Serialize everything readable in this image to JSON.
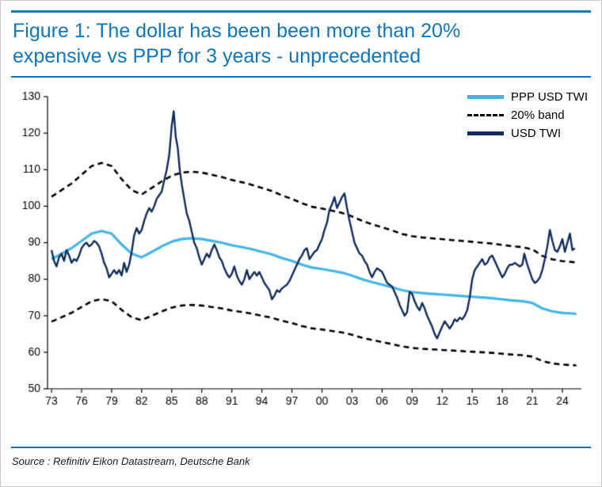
{
  "figure": {
    "title_lines": [
      "Figure 1: The dollar has been been more than 20%",
      "expensive vs PPP for 3 years - unprecedented"
    ],
    "source": "Source : Refinitiv Eikon Datastream, Deutsche Bank"
  },
  "colors": {
    "title_blue": "#1175bc",
    "ppp": "#41b6e6",
    "band": "#000000",
    "usd": "#0f2b5b",
    "axis": "#000000"
  },
  "chart_data": {
    "type": "line",
    "title": "Figure 1: The dollar has been been more than 20% expensive vs PPP for 3 years - unprecedented",
    "xlabel": "",
    "ylabel": "",
    "xlim": [
      1972.6,
      2025.9
    ],
    "ylim": [
      50,
      130
    ],
    "grid": false,
    "legend_position": "top-right",
    "y_ticks": [
      50,
      60,
      70,
      80,
      90,
      100,
      110,
      120,
      130
    ],
    "x_ticks": [
      1973,
      1976,
      1979,
      1982,
      1985,
      1988,
      1991,
      1994,
      1997,
      2000,
      2003,
      2006,
      2009,
      2012,
      2015,
      2018,
      2021,
      2024
    ],
    "x_tick_labels": [
      "73",
      "76",
      "79",
      "82",
      "85",
      "88",
      "91",
      "94",
      "97",
      "00",
      "03",
      "06",
      "09",
      "12",
      "15",
      "18",
      "21",
      "24"
    ],
    "band_pct": 20,
    "series": [
      {
        "name": "PPP USD TWI",
        "style": "solid",
        "color_key": "ppp",
        "points": [
          [
            1973,
            85.5
          ],
          [
            1974,
            87
          ],
          [
            1975,
            88.5
          ],
          [
            1976,
            90.5
          ],
          [
            1977,
            92.5
          ],
          [
            1978,
            93.2
          ],
          [
            1979,
            92.5
          ],
          [
            1980,
            89.5
          ],
          [
            1981,
            87
          ],
          [
            1982,
            86
          ],
          [
            1983,
            87.5
          ],
          [
            1984,
            89
          ],
          [
            1985,
            90.3
          ],
          [
            1986,
            91
          ],
          [
            1987,
            91.2
          ],
          [
            1988,
            91
          ],
          [
            1989,
            90.5
          ],
          [
            1990,
            90
          ],
          [
            1991,
            89.3
          ],
          [
            1992,
            88.8
          ],
          [
            1993,
            88.2
          ],
          [
            1994,
            87.5
          ],
          [
            1995,
            86.8
          ],
          [
            1996,
            85.8
          ],
          [
            1997,
            85
          ],
          [
            1998,
            84
          ],
          [
            1999,
            83.2
          ],
          [
            2000,
            82.8
          ],
          [
            2001,
            82.3
          ],
          [
            2002,
            81.8
          ],
          [
            2003,
            81
          ],
          [
            2004,
            80
          ],
          [
            2005,
            79.2
          ],
          [
            2006,
            78.5
          ],
          [
            2007,
            77.8
          ],
          [
            2008,
            77
          ],
          [
            2009,
            76.5
          ],
          [
            2010,
            76.2
          ],
          [
            2011,
            76
          ],
          [
            2012,
            75.8
          ],
          [
            2013,
            75.6
          ],
          [
            2014,
            75.4
          ],
          [
            2015,
            75.2
          ],
          [
            2016,
            75
          ],
          [
            2017,
            74.8
          ],
          [
            2018,
            74.5
          ],
          [
            2019,
            74.2
          ],
          [
            2020,
            74
          ],
          [
            2021,
            73.5
          ],
          [
            2022,
            72
          ],
          [
            2023,
            71.2
          ],
          [
            2024,
            70.8
          ],
          [
            2025,
            70.6
          ],
          [
            2025.4,
            70.5
          ]
        ]
      },
      {
        "name": "20% band",
        "style": "dashed",
        "color_key": "band",
        "derived_from": "PPP USD TWI plus/minus 20%"
      },
      {
        "name": "USD TWI",
        "style": "solid",
        "color_key": "usd",
        "points": [
          [
            1973,
            88
          ],
          [
            1973.25,
            85
          ],
          [
            1973.5,
            83.5
          ],
          [
            1973.75,
            86
          ],
          [
            1974,
            87
          ],
          [
            1974.25,
            85
          ],
          [
            1974.5,
            88
          ],
          [
            1974.75,
            86.5
          ],
          [
            1975,
            84.5
          ],
          [
            1975.25,
            85.5
          ],
          [
            1975.5,
            85
          ],
          [
            1975.75,
            86.5
          ],
          [
            1976,
            88.5
          ],
          [
            1976.25,
            89.5
          ],
          [
            1976.5,
            90
          ],
          [
            1976.75,
            89
          ],
          [
            1977,
            89.5
          ],
          [
            1977.25,
            90.5
          ],
          [
            1977.5,
            90
          ],
          [
            1977.75,
            89
          ],
          [
            1978,
            87
          ],
          [
            1978.25,
            84.5
          ],
          [
            1978.5,
            83
          ],
          [
            1978.75,
            80.5
          ],
          [
            1979,
            81.5
          ],
          [
            1979.25,
            82.5
          ],
          [
            1979.5,
            81.5
          ],
          [
            1979.75,
            82.5
          ],
          [
            1980,
            81
          ],
          [
            1980.25,
            84.5
          ],
          [
            1980.5,
            82
          ],
          [
            1980.75,
            84
          ],
          [
            1981,
            87.5
          ],
          [
            1981.25,
            92
          ],
          [
            1981.5,
            94
          ],
          [
            1981.75,
            92.5
          ],
          [
            1982,
            93.5
          ],
          [
            1982.25,
            96
          ],
          [
            1982.5,
            98
          ],
          [
            1982.75,
            99.5
          ],
          [
            1983,
            98.5
          ],
          [
            1983.25,
            100
          ],
          [
            1983.5,
            102
          ],
          [
            1983.75,
            103
          ],
          [
            1984,
            104
          ],
          [
            1984.25,
            107
          ],
          [
            1984.5,
            110
          ],
          [
            1984.75,
            114
          ],
          [
            1985,
            122
          ],
          [
            1985.2,
            126
          ],
          [
            1985.4,
            119
          ],
          [
            1985.6,
            116
          ],
          [
            1985.8,
            110
          ],
          [
            1986,
            106
          ],
          [
            1986.25,
            102
          ],
          [
            1986.5,
            98
          ],
          [
            1986.75,
            96
          ],
          [
            1987,
            93
          ],
          [
            1987.25,
            90
          ],
          [
            1987.5,
            88.5
          ],
          [
            1987.75,
            86
          ],
          [
            1988,
            84
          ],
          [
            1988.25,
            85.5
          ],
          [
            1988.5,
            87
          ],
          [
            1988.75,
            86
          ],
          [
            1989,
            88
          ],
          [
            1989.25,
            89.5
          ],
          [
            1989.5,
            88
          ],
          [
            1989.75,
            86
          ],
          [
            1990,
            85
          ],
          [
            1990.25,
            83
          ],
          [
            1990.5,
            81.5
          ],
          [
            1990.75,
            80.5
          ],
          [
            1991,
            81.5
          ],
          [
            1991.25,
            83.5
          ],
          [
            1991.5,
            81
          ],
          [
            1991.75,
            79.5
          ],
          [
            1992,
            78.5
          ],
          [
            1992.25,
            80
          ],
          [
            1992.5,
            82.5
          ],
          [
            1992.75,
            80
          ],
          [
            1993,
            81
          ],
          [
            1993.25,
            82
          ],
          [
            1993.5,
            81
          ],
          [
            1993.75,
            82
          ],
          [
            1994,
            80.5
          ],
          [
            1994.25,
            79
          ],
          [
            1994.5,
            78
          ],
          [
            1994.75,
            77
          ],
          [
            1995,
            74.5
          ],
          [
            1995.25,
            75.5
          ],
          [
            1995.5,
            77
          ],
          [
            1995.75,
            76.5
          ],
          [
            1996,
            77.5
          ],
          [
            1996.25,
            78
          ],
          [
            1996.5,
            78.5
          ],
          [
            1996.75,
            79.5
          ],
          [
            1997,
            81
          ],
          [
            1997.25,
            82.5
          ],
          [
            1997.5,
            84
          ],
          [
            1997.75,
            85.5
          ],
          [
            1998,
            86.5
          ],
          [
            1998.25,
            88
          ],
          [
            1998.5,
            88.5
          ],
          [
            1998.75,
            85.5
          ],
          [
            1999,
            86.5
          ],
          [
            1999.25,
            87.5
          ],
          [
            1999.5,
            88
          ],
          [
            1999.75,
            89.5
          ],
          [
            2000,
            91
          ],
          [
            2000.25,
            93.5
          ],
          [
            2000.5,
            95.5
          ],
          [
            2000.75,
            99
          ],
          [
            2001,
            100.5
          ],
          [
            2001.25,
            102.5
          ],
          [
            2001.5,
            99.5
          ],
          [
            2001.75,
            101
          ],
          [
            2002,
            102.5
          ],
          [
            2002.25,
            103.5
          ],
          [
            2002.5,
            99.5
          ],
          [
            2002.75,
            96
          ],
          [
            2003,
            93
          ],
          [
            2003.25,
            90
          ],
          [
            2003.5,
            88.5
          ],
          [
            2003.75,
            87
          ],
          [
            2004,
            86.5
          ],
          [
            2004.25,
            85
          ],
          [
            2004.5,
            84
          ],
          [
            2004.75,
            82
          ],
          [
            2005,
            80.5
          ],
          [
            2005.25,
            82
          ],
          [
            2005.5,
            83
          ],
          [
            2005.75,
            82.5
          ],
          [
            2006,
            82
          ],
          [
            2006.25,
            80.5
          ],
          [
            2006.5,
            79
          ],
          [
            2006.75,
            78.5
          ],
          [
            2007,
            78
          ],
          [
            2007.25,
            76.5
          ],
          [
            2007.5,
            75
          ],
          [
            2007.75,
            73
          ],
          [
            2008,
            71.5
          ],
          [
            2008.25,
            70
          ],
          [
            2008.5,
            71
          ],
          [
            2008.75,
            76.5
          ],
          [
            2009,
            76
          ],
          [
            2009.25,
            74
          ],
          [
            2009.5,
            72.5
          ],
          [
            2009.75,
            71.5
          ],
          [
            2010,
            73.5
          ],
          [
            2010.25,
            72
          ],
          [
            2010.5,
            70
          ],
          [
            2010.75,
            68.5
          ],
          [
            2011,
            67
          ],
          [
            2011.25,
            65
          ],
          [
            2011.5,
            63.8
          ],
          [
            2011.75,
            65.5
          ],
          [
            2012,
            67
          ],
          [
            2012.25,
            68.5
          ],
          [
            2012.5,
            67.5
          ],
          [
            2012.75,
            66.5
          ],
          [
            2013,
            67.5
          ],
          [
            2013.25,
            69
          ],
          [
            2013.5,
            68.5
          ],
          [
            2013.75,
            69.5
          ],
          [
            2014,
            69
          ],
          [
            2014.25,
            70
          ],
          [
            2014.5,
            71.5
          ],
          [
            2014.75,
            75
          ],
          [
            2015,
            80
          ],
          [
            2015.25,
            82.5
          ],
          [
            2015.5,
            83.5
          ],
          [
            2015.75,
            84.5
          ],
          [
            2016,
            85.5
          ],
          [
            2016.25,
            84
          ],
          [
            2016.5,
            84.5
          ],
          [
            2016.75,
            86
          ],
          [
            2017,
            86.5
          ],
          [
            2017.25,
            85
          ],
          [
            2017.5,
            83.5
          ],
          [
            2017.75,
            82
          ],
          [
            2018,
            80.5
          ],
          [
            2018.25,
            81.5
          ],
          [
            2018.5,
            83
          ],
          [
            2018.75,
            84
          ],
          [
            2019,
            84
          ],
          [
            2019.25,
            84.5
          ],
          [
            2019.5,
            84
          ],
          [
            2019.75,
            83.5
          ],
          [
            2020,
            84
          ],
          [
            2020.2,
            87
          ],
          [
            2020.5,
            84
          ],
          [
            2020.75,
            82
          ],
          [
            2021,
            80
          ],
          [
            2021.25,
            79
          ],
          [
            2021.5,
            79.5
          ],
          [
            2021.75,
            80.5
          ],
          [
            2022,
            82.5
          ],
          [
            2022.25,
            85.5
          ],
          [
            2022.5,
            89
          ],
          [
            2022.75,
            93.5
          ],
          [
            2023,
            90.5
          ],
          [
            2023.25,
            88
          ],
          [
            2023.5,
            87.5
          ],
          [
            2023.75,
            89
          ],
          [
            2024,
            91
          ],
          [
            2024.25,
            87.5
          ],
          [
            2024.5,
            90
          ],
          [
            2024.75,
            92.5
          ],
          [
            2025,
            88
          ],
          [
            2025.25,
            88.5
          ]
        ]
      }
    ]
  }
}
